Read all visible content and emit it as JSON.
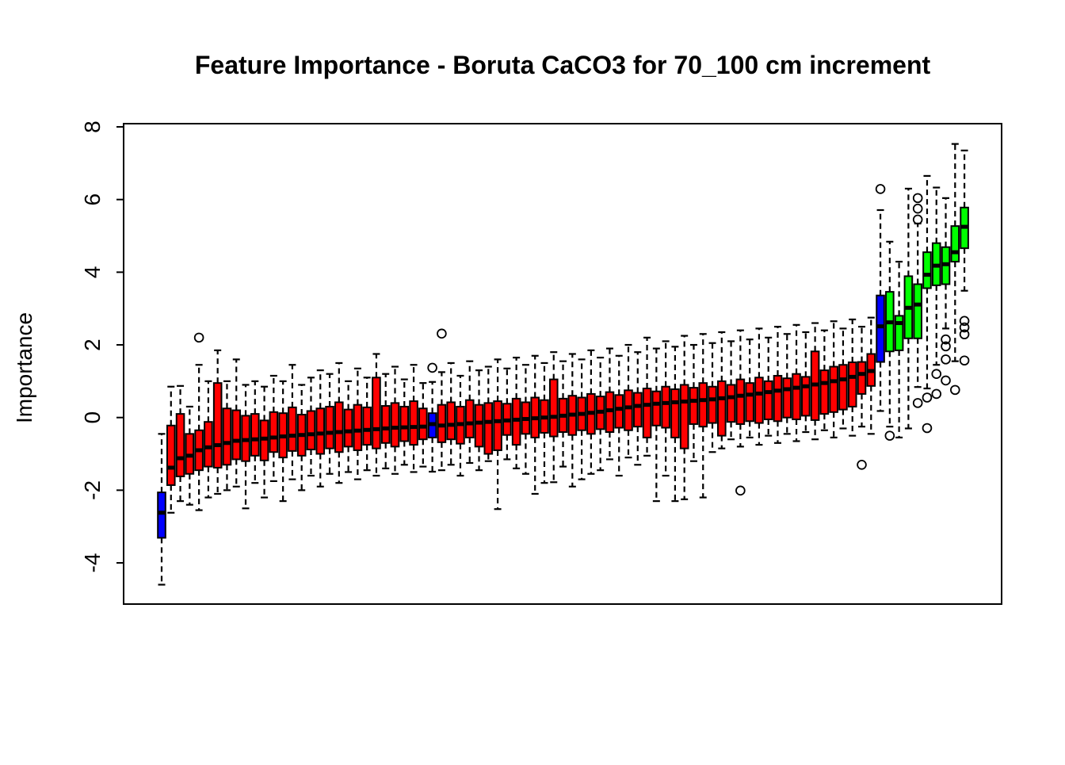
{
  "chart_data": {
    "type": "boxplot",
    "title": "Feature Importance - Boruta CaCO3 for 70_100 cm increment",
    "ylabel": "Importance",
    "xlabel": "",
    "ylim": [
      -5.1,
      8.1
    ],
    "yticks": [
      -4,
      -2,
      0,
      2,
      4,
      6,
      8
    ],
    "grid": false,
    "x_tick_labels": [],
    "colors": {
      "rejected": "#ff0000",
      "shadow": "#0000ff",
      "confirmed": "#00ff00",
      "axis": "#000000",
      "background": "#ffffff"
    },
    "color_key": {
      "r": "rejected",
      "b": "shadow",
      "g": "confirmed"
    },
    "box_columns": [
      "median",
      "q1",
      "q3",
      "whisker_low",
      "whisker_high",
      "color",
      "outliers"
    ],
    "boxes": [
      [
        -2.62,
        -3.31,
        -2.06,
        -4.6,
        -0.45,
        "b",
        []
      ],
      [
        -1.38,
        -1.86,
        -0.22,
        -2.62,
        0.85,
        "r",
        []
      ],
      [
        -1.12,
        -1.62,
        0.1,
        -2.3,
        0.87,
        "r",
        []
      ],
      [
        -1.05,
        -1.55,
        -0.45,
        -2.4,
        0.3,
        "r",
        []
      ],
      [
        -0.9,
        -1.45,
        -0.35,
        -2.55,
        1.45,
        "r",
        [
          2.2
        ]
      ],
      [
        -0.82,
        -1.35,
        -0.12,
        -2.2,
        1.0,
        "r",
        []
      ],
      [
        -0.76,
        -1.38,
        0.95,
        -2.1,
        1.85,
        "r",
        []
      ],
      [
        -0.7,
        -1.3,
        0.25,
        -2.0,
        1.0,
        "r",
        []
      ],
      [
        -0.64,
        -1.15,
        0.2,
        -1.9,
        1.6,
        "r",
        []
      ],
      [
        -0.62,
        -1.2,
        0.05,
        -2.5,
        0.9,
        "r",
        []
      ],
      [
        -0.6,
        -1.05,
        0.1,
        -1.8,
        1.0,
        "r",
        []
      ],
      [
        -0.58,
        -1.18,
        -0.08,
        -2.2,
        0.85,
        "r",
        []
      ],
      [
        -0.55,
        -0.95,
        0.15,
        -1.75,
        1.15,
        "r",
        []
      ],
      [
        -0.52,
        -1.1,
        0.12,
        -2.3,
        1.0,
        "r",
        []
      ],
      [
        -0.5,
        -0.92,
        0.28,
        -1.7,
        1.45,
        "r",
        []
      ],
      [
        -0.48,
        -1.05,
        0.08,
        -2.0,
        0.9,
        "r",
        []
      ],
      [
        -0.46,
        -0.88,
        0.18,
        -1.6,
        1.1,
        "r",
        []
      ],
      [
        -0.44,
        -1.0,
        0.25,
        -1.9,
        1.3,
        "r",
        []
      ],
      [
        -0.42,
        -0.85,
        0.3,
        -1.55,
        1.2,
        "r",
        []
      ],
      [
        -0.4,
        -0.95,
        0.42,
        -1.8,
        1.5,
        "r",
        []
      ],
      [
        -0.38,
        -0.8,
        0.22,
        -1.5,
        1.0,
        "r",
        []
      ],
      [
        -0.36,
        -0.9,
        0.35,
        -1.7,
        1.35,
        "r",
        []
      ],
      [
        -0.34,
        -0.75,
        0.28,
        -1.45,
        1.1,
        "r",
        []
      ],
      [
        -0.32,
        -0.85,
        1.1,
        -1.6,
        1.75,
        "r",
        []
      ],
      [
        -0.3,
        -0.7,
        0.32,
        -1.4,
        1.2,
        "r",
        []
      ],
      [
        -0.28,
        -0.8,
        0.4,
        -1.55,
        1.4,
        "r",
        []
      ],
      [
        -0.27,
        -0.65,
        0.3,
        -1.3,
        1.05,
        "r",
        []
      ],
      [
        -0.26,
        -0.75,
        0.45,
        -1.5,
        1.45,
        "r",
        []
      ],
      [
        -0.25,
        -0.6,
        0.25,
        -1.35,
        0.95,
        "r",
        []
      ],
      [
        -0.18,
        -0.55,
        0.12,
        -1.49,
        0.98,
        "b",
        [
          1.37
        ]
      ],
      [
        -0.22,
        -0.68,
        0.35,
        -1.45,
        1.25,
        "r",
        [
          2.31
        ]
      ],
      [
        -0.2,
        -0.6,
        0.42,
        -1.3,
        1.5,
        "r",
        []
      ],
      [
        -0.18,
        -0.72,
        0.3,
        -1.6,
        1.15,
        "r",
        []
      ],
      [
        -0.16,
        -0.55,
        0.48,
        -1.25,
        1.55,
        "r",
        []
      ],
      [
        -0.14,
        -0.8,
        0.35,
        -1.45,
        1.3,
        "r",
        []
      ],
      [
        -0.12,
        -1.0,
        0.4,
        -1.2,
        1.4,
        "r",
        []
      ],
      [
        -0.1,
        -0.9,
        0.45,
        -2.52,
        1.6,
        "r",
        []
      ],
      [
        -0.08,
        -0.48,
        0.38,
        -1.15,
        1.35,
        "r",
        []
      ],
      [
        -0.06,
        -0.75,
        0.52,
        -1.4,
        1.65,
        "r",
        []
      ],
      [
        -0.04,
        -0.45,
        0.42,
        -1.55,
        1.45,
        "r",
        []
      ],
      [
        -0.02,
        -0.55,
        0.55,
        -2.1,
        1.7,
        "r",
        []
      ],
      [
        0.0,
        -0.42,
        0.48,
        -1.8,
        1.5,
        "r",
        []
      ],
      [
        0.02,
        -0.52,
        1.05,
        -1.78,
        1.8,
        "r",
        []
      ],
      [
        0.05,
        -0.4,
        0.52,
        -1.35,
        1.55,
        "r",
        []
      ],
      [
        0.08,
        -0.48,
        0.6,
        -1.9,
        1.75,
        "r",
        []
      ],
      [
        0.1,
        -0.35,
        0.55,
        -1.7,
        1.6,
        "r",
        []
      ],
      [
        0.13,
        -0.45,
        0.65,
        -1.55,
        1.85,
        "r",
        []
      ],
      [
        0.16,
        -0.32,
        0.58,
        -1.45,
        1.65,
        "r",
        []
      ],
      [
        0.2,
        -0.4,
        0.7,
        -1.15,
        1.9,
        "r",
        []
      ],
      [
        0.24,
        -0.28,
        0.62,
        -1.6,
        1.7,
        "r",
        []
      ],
      [
        0.28,
        -0.35,
        0.75,
        -1.1,
        2.0,
        "r",
        []
      ],
      [
        0.32,
        -0.25,
        0.68,
        -1.3,
        1.8,
        "r",
        []
      ],
      [
        0.35,
        -0.55,
        0.8,
        -1.05,
        2.2,
        "r",
        []
      ],
      [
        0.38,
        -0.22,
        0.72,
        -2.3,
        1.9,
        "r",
        []
      ],
      [
        0.4,
        -0.28,
        0.85,
        -1.6,
        2.1,
        "r",
        []
      ],
      [
        0.42,
        -0.55,
        0.78,
        -2.3,
        1.95,
        "r",
        []
      ],
      [
        0.44,
        -0.85,
        0.9,
        -2.25,
        2.25,
        "r",
        []
      ],
      [
        0.46,
        -0.18,
        0.82,
        -1.2,
        2.0,
        "r",
        []
      ],
      [
        0.48,
        -0.25,
        0.95,
        -2.2,
        2.3,
        "r",
        []
      ],
      [
        0.5,
        -0.15,
        0.85,
        -0.95,
        2.05,
        "r",
        []
      ],
      [
        0.53,
        -0.5,
        1.0,
        -0.85,
        2.35,
        "r",
        []
      ],
      [
        0.56,
        -0.12,
        0.9,
        -0.6,
        2.1,
        "r",
        []
      ],
      [
        0.6,
        -0.18,
        1.05,
        -0.8,
        2.4,
        "r",
        [
          -2.01
        ]
      ],
      [
        0.63,
        -0.1,
        0.95,
        -0.55,
        2.15,
        "r",
        []
      ],
      [
        0.66,
        -0.15,
        1.1,
        -0.75,
        2.45,
        "r",
        []
      ],
      [
        0.7,
        -0.05,
        1.0,
        -0.5,
        2.2,
        "r",
        []
      ],
      [
        0.74,
        -0.1,
        1.15,
        -0.7,
        2.5,
        "r",
        []
      ],
      [
        0.78,
        0.0,
        1.08,
        -0.45,
        2.3,
        "r",
        []
      ],
      [
        0.82,
        -0.05,
        1.2,
        -0.65,
        2.55,
        "r",
        []
      ],
      [
        0.86,
        0.05,
        1.12,
        -0.4,
        2.35,
        "r",
        []
      ],
      [
        0.91,
        -0.07,
        1.82,
        -0.6,
        2.6,
        "r",
        []
      ],
      [
        0.95,
        0.1,
        1.3,
        -0.35,
        2.4,
        "r",
        []
      ],
      [
        1.0,
        0.15,
        1.4,
        -0.55,
        2.65,
        "r",
        []
      ],
      [
        1.05,
        0.22,
        1.45,
        -0.3,
        2.45,
        "r",
        []
      ],
      [
        1.12,
        0.3,
        1.52,
        -0.5,
        2.7,
        "r",
        []
      ],
      [
        1.2,
        0.65,
        1.53,
        -0.25,
        2.5,
        "r",
        [
          -1.3
        ]
      ],
      [
        1.28,
        0.87,
        1.75,
        -0.45,
        2.75,
        "r",
        []
      ],
      [
        2.51,
        1.53,
        3.36,
        0.18,
        5.71,
        "b",
        [
          6.29
        ]
      ],
      [
        2.62,
        1.82,
        3.46,
        -0.25,
        4.84,
        "g",
        [
          -0.5
        ]
      ],
      [
        2.6,
        1.85,
        2.8,
        -0.55,
        4.29,
        "g",
        []
      ],
      [
        3.02,
        2.18,
        3.89,
        -0.3,
        6.3,
        "g",
        []
      ],
      [
        3.11,
        2.18,
        3.67,
        0.84,
        5.34,
        "g",
        [
          6.04,
          5.75,
          5.45,
          0.4
        ]
      ],
      [
        3.93,
        3.56,
        4.55,
        0.8,
        6.65,
        "g",
        [
          0.55,
          -0.29
        ]
      ],
      [
        4.18,
        3.64,
        4.8,
        1.45,
        6.33,
        "g",
        [
          1.2,
          0.65
        ]
      ],
      [
        4.22,
        3.67,
        4.69,
        2.45,
        6.04,
        "g",
        [
          2.15,
          1.96,
          1.6,
          1.02
        ]
      ],
      [
        4.55,
        4.29,
        5.27,
        1.55,
        7.53,
        "g",
        [
          0.76
        ]
      ],
      [
        5.25,
        4.66,
        5.78,
        3.49,
        7.35,
        "g",
        [
          2.66,
          2.48,
          2.29,
          1.57
        ]
      ]
    ]
  }
}
